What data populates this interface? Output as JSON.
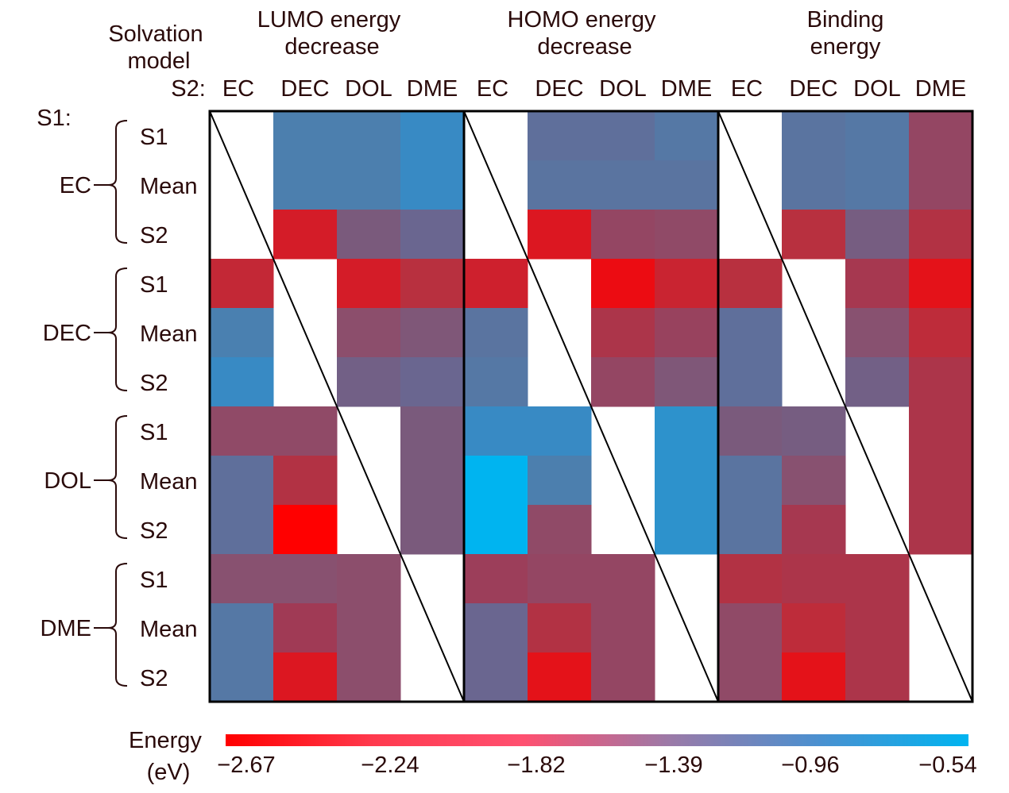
{
  "chart_data": {
    "type": "heatmap",
    "row_header": [
      "Solvation",
      "model"
    ],
    "col_prefix": "S2:",
    "row_prefix": "S1:",
    "panels": [
      {
        "title": [
          "LUMO energy",
          "decrease"
        ]
      },
      {
        "title": [
          "HOMO energy",
          "decrease"
        ]
      },
      {
        "title": [
          "Binding",
          "energy"
        ]
      }
    ],
    "columns": [
      "EC",
      "DEC",
      "DOL",
      "DME"
    ],
    "row_groups": [
      "EC",
      "DEC",
      "DOL",
      "DME"
    ],
    "row_sub": [
      "S1",
      "Mean",
      "S2"
    ],
    "values": [
      [
        [
          null,
          -1.0,
          -1.0,
          -0.8
        ],
        [
          null,
          -1.0,
          -1.0,
          -0.8
        ],
        [
          null,
          -2.4,
          -1.5,
          -1.3
        ],
        [
          -2.25,
          null,
          -2.4,
          -2.15
        ],
        [
          -0.98,
          null,
          -1.7,
          -1.55
        ],
        [
          -0.8,
          null,
          -1.4,
          -1.3
        ],
        [
          -1.75,
          -1.75,
          null,
          -1.5
        ],
        [
          -1.2,
          -2.1,
          null,
          -1.5
        ],
        [
          -1.2,
          -2.67,
          null,
          -1.5
        ],
        [
          -1.65,
          -1.65,
          -1.7,
          null
        ],
        [
          -1.1,
          -1.95,
          -1.7,
          null
        ],
        [
          -1.1,
          -2.45,
          -1.7,
          null
        ]
      ],
      [
        [
          null,
          -1.2,
          -1.2,
          -1.1
        ],
        [
          null,
          -1.15,
          -1.15,
          -1.15
        ],
        [
          null,
          -2.45,
          -1.8,
          -1.75
        ],
        [
          -2.35,
          null,
          -2.55,
          -2.3
        ],
        [
          -1.15,
          null,
          -2.05,
          -1.85
        ],
        [
          -1.1,
          null,
          -1.8,
          -1.55
        ],
        [
          -0.8,
          -0.8,
          null,
          -0.75
        ],
        [
          -0.54,
          -1.0,
          null,
          -0.75
        ],
        [
          -0.54,
          -1.75,
          null,
          -0.75
        ],
        [
          -1.9,
          -1.8,
          -1.8,
          null
        ],
        [
          -1.3,
          -2.1,
          -1.8,
          null
        ],
        [
          -1.3,
          -2.5,
          -1.8,
          null
        ]
      ],
      [
        [
          null,
          -1.15,
          -1.1,
          -1.8
        ],
        [
          null,
          -1.15,
          -1.1,
          -1.8
        ],
        [
          null,
          -2.15,
          -1.45,
          -2.1
        ],
        [
          -2.15,
          null,
          -2.0,
          -2.5
        ],
        [
          -1.2,
          null,
          -1.65,
          -2.2
        ],
        [
          -1.2,
          null,
          -1.4,
          -2.05
        ],
        [
          -1.5,
          -1.45,
          null,
          -2.05
        ],
        [
          -1.15,
          -1.65,
          null,
          -2.05
        ],
        [
          -1.15,
          -2.0,
          null,
          -2.05
        ],
        [
          -2.1,
          -2.05,
          -2.05,
          null
        ],
        [
          -1.75,
          -2.2,
          -2.05,
          null
        ],
        [
          -1.75,
          -2.5,
          -2.05,
          null
        ]
      ]
    ],
    "colorbar": {
      "label": [
        "Energy",
        "(eV)"
      ],
      "range": [
        -2.67,
        -0.54
      ],
      "ticks": [
        "−2.67",
        "−2.24",
        "−1.82",
        "−1.39",
        "−0.96",
        "−0.54"
      ],
      "colors": [
        "#ff0000",
        "#ff3a4e",
        "#ff5070",
        "#9a7aa8",
        "#4a90d0",
        "#00b4f0"
      ]
    },
    "diagonal": "blank cells with diagonal line"
  }
}
